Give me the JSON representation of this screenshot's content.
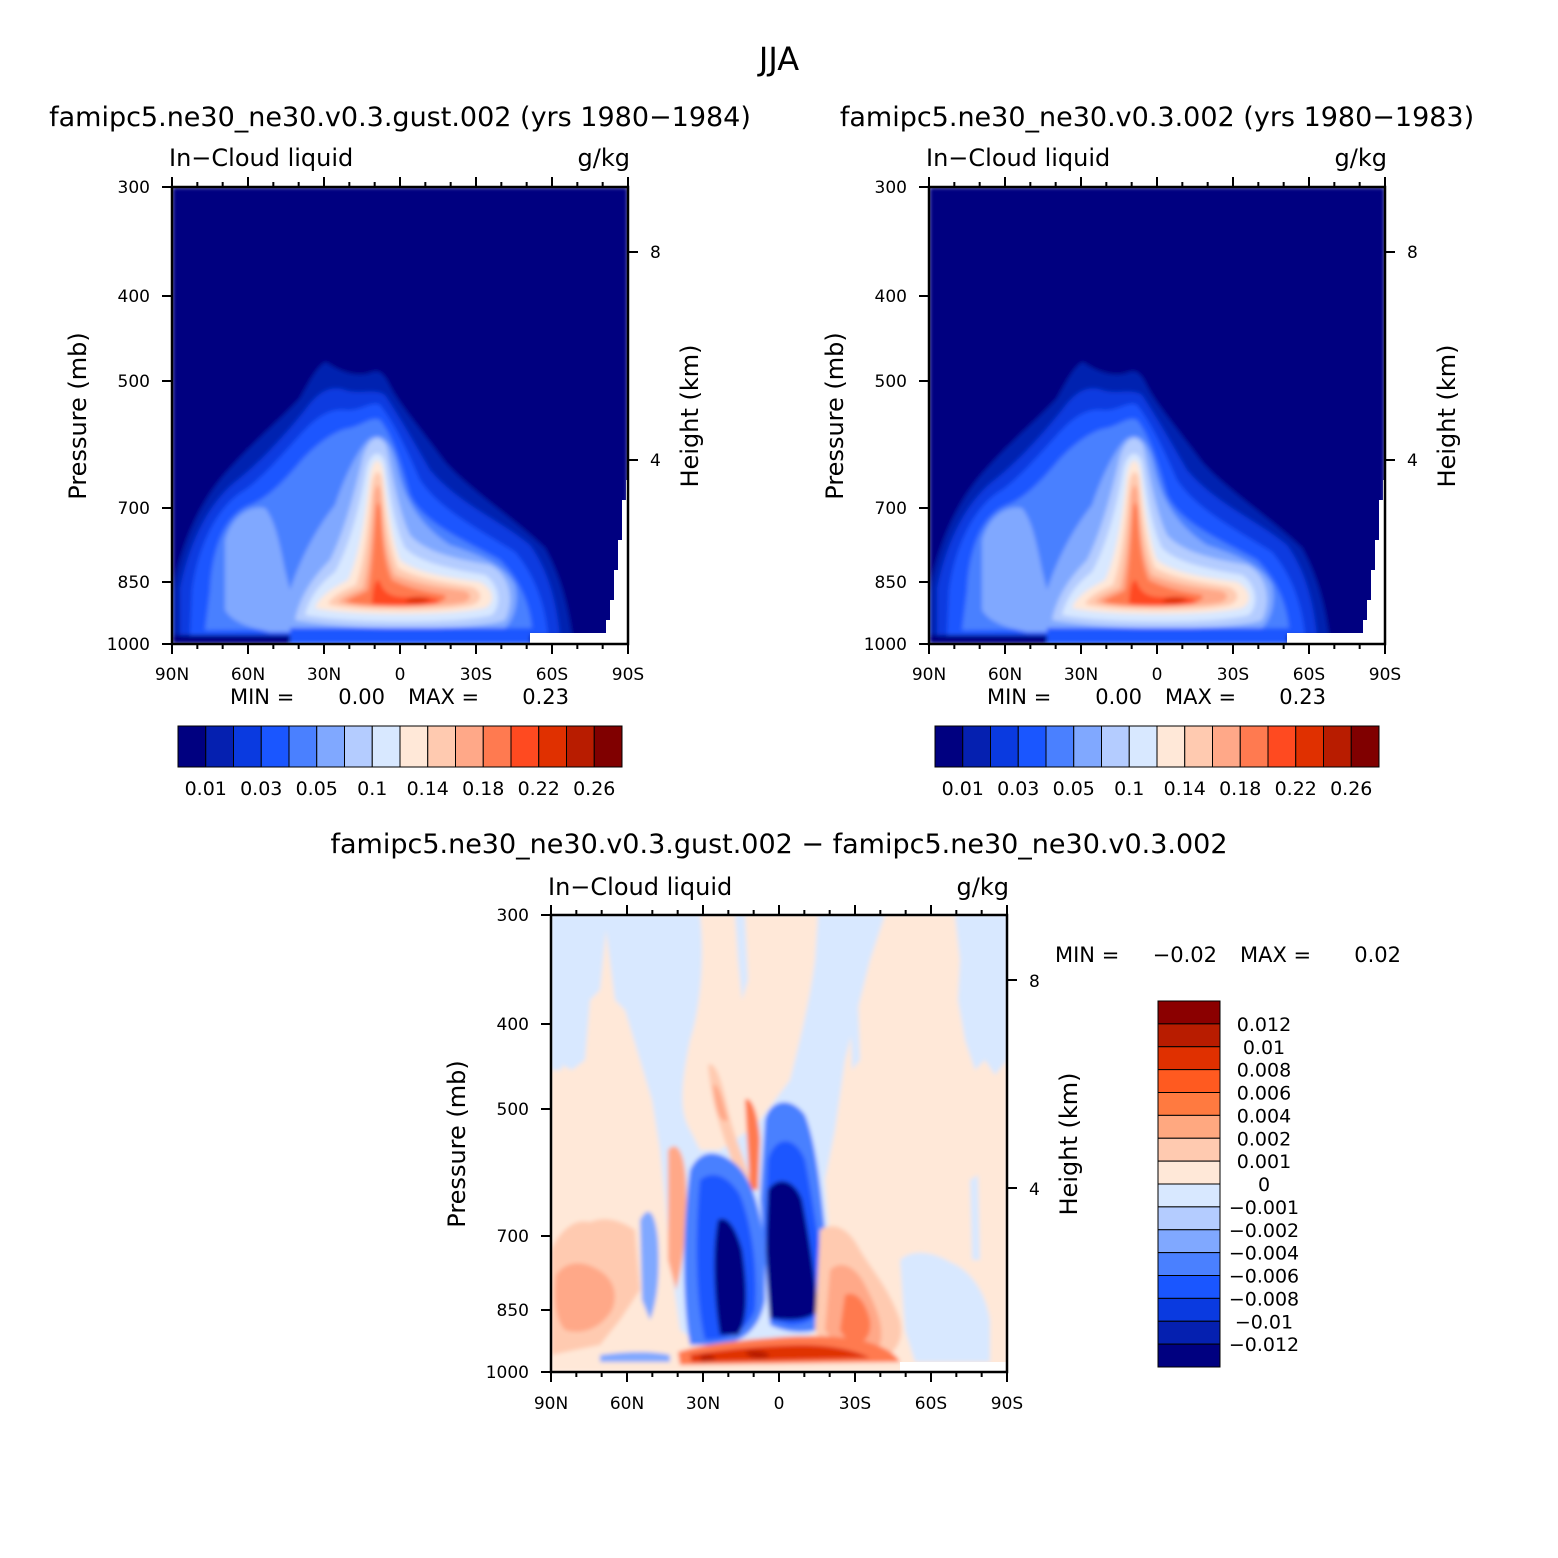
{
  "figure": {
    "title": "JJA"
  },
  "chart_data": [
    {
      "type": "heatmap",
      "title": "famipc5.ne30_ne30.v0.3.gust.002 (yrs 1980−1984)",
      "left_label": "In−Cloud liquid",
      "right_label": "g/kg",
      "xlabel": "",
      "ylabel": "Pressure (mb)",
      "y2label": "Height (km)",
      "x_ticks": [
        "90N",
        "60N",
        "30N",
        "0",
        "30S",
        "60S",
        "90S"
      ],
      "y_ticks": [
        300,
        400,
        500,
        700,
        850,
        1000
      ],
      "y2_ticks": [
        8,
        4
      ],
      "stats": {
        "min_label": "MIN =",
        "min": "0.00",
        "max_label": "MAX =",
        "max": "0.23"
      },
      "colorbar": {
        "labels": [
          "0.01",
          "0.03",
          "0.05",
          "0.1",
          "0.14",
          "0.18",
          "0.22",
          "0.26"
        ],
        "colors": [
          "#000080",
          "#0520b0",
          "#0a3ae0",
          "#1a56ff",
          "#4a80ff",
          "#80a8ff",
          "#b4ccff",
          "#d8e8ff",
          "#ffe8d8",
          "#ffcab0",
          "#ffa888",
          "#ff7a50",
          "#ff4a20",
          "#e03000",
          "#b81c00",
          "#800000"
        ]
      },
      "features": {
        "peak_lat": -10,
        "peak_value": 0.23,
        "secondary_lat": 10,
        "dominant_value": "lowest contour level"
      }
    },
    {
      "type": "heatmap",
      "title": "famipc5.ne30_ne30.v0.3.002 (yrs 1980−1983)",
      "left_label": "In−Cloud liquid",
      "right_label": "g/kg",
      "xlabel": "",
      "ylabel": "Pressure (mb)",
      "y2label": "Height (km)",
      "x_ticks": [
        "90N",
        "60N",
        "30N",
        "0",
        "30S",
        "60S",
        "90S"
      ],
      "y_ticks": [
        300,
        400,
        500,
        700,
        850,
        1000
      ],
      "y2_ticks": [
        8,
        4
      ],
      "stats": {
        "min_label": "MIN =",
        "min": "0.00",
        "max_label": "MAX =",
        "max": "0.23"
      },
      "colorbar": {
        "labels": [
          "0.01",
          "0.03",
          "0.05",
          "0.1",
          "0.14",
          "0.18",
          "0.22",
          "0.26"
        ],
        "colors": [
          "#000080",
          "#0520b0",
          "#0a3ae0",
          "#1a56ff",
          "#4a80ff",
          "#80a8ff",
          "#b4ccff",
          "#d8e8ff",
          "#ffe8d8",
          "#ffcab0",
          "#ffa888",
          "#ff7a50",
          "#ff4a20",
          "#e03000",
          "#b81c00",
          "#800000"
        ]
      }
    },
    {
      "type": "heatmap",
      "title": "famipc5.ne30_ne30.v0.3.gust.002 − famipc5.ne30_ne30.v0.3.002",
      "left_label": "In−Cloud liquid",
      "right_label": "g/kg",
      "xlabel": "",
      "ylabel": "Pressure (mb)",
      "y2label": "Height (km)",
      "x_ticks": [
        "90N",
        "60N",
        "30N",
        "0",
        "30S",
        "60S",
        "90S"
      ],
      "y_ticks": [
        300,
        400,
        500,
        700,
        850,
        1000
      ],
      "y2_ticks": [
        8,
        4
      ],
      "stats": {
        "min_label": "MIN =",
        "min": "−0.02",
        "max_label": "MAX =",
        "max": "0.02"
      },
      "colorbar": {
        "labels": [
          "0.012",
          "0.01",
          "0.008",
          "0.006",
          "0.004",
          "0.002",
          "0.001",
          "0",
          "−0.001",
          "−0.002",
          "−0.004",
          "−0.006",
          "−0.008",
          "−0.01",
          "−0.012"
        ],
        "colors": [
          "#8b0000",
          "#b81c00",
          "#e03000",
          "#ff5a20",
          "#ff7a40",
          "#ffa880",
          "#ffcab0",
          "#ffe8d8",
          "#d8e8ff",
          "#b4ccff",
          "#80a8ff",
          "#4a80ff",
          "#1a56ff",
          "#0a3ae0",
          "#0520b0",
          "#000080"
        ]
      }
    }
  ]
}
